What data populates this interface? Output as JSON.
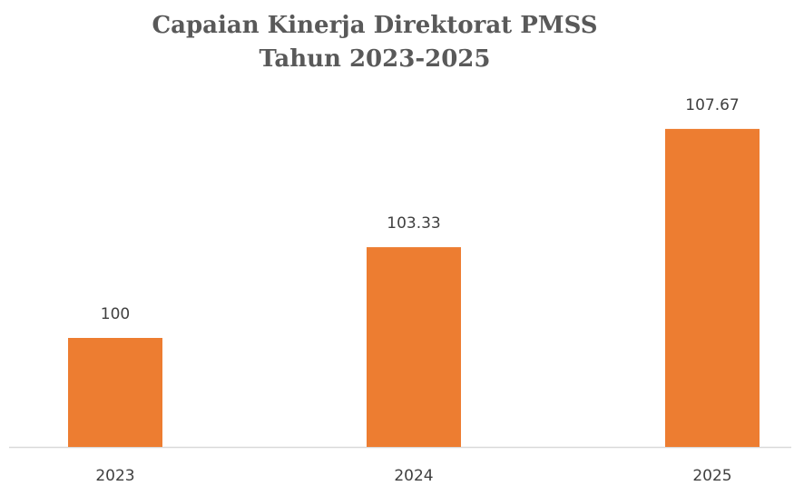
{
  "chart_data": {
    "type": "bar",
    "title": [
      "Capaian Kinerja Direktorat PMSS",
      "Tahun 2023-2025"
    ],
    "categories": [
      "2023",
      "2024",
      "2025"
    ],
    "values": [
      100,
      103.33,
      107.67
    ],
    "color": "#ed7d31",
    "ylim": [
      96,
      109
    ]
  }
}
